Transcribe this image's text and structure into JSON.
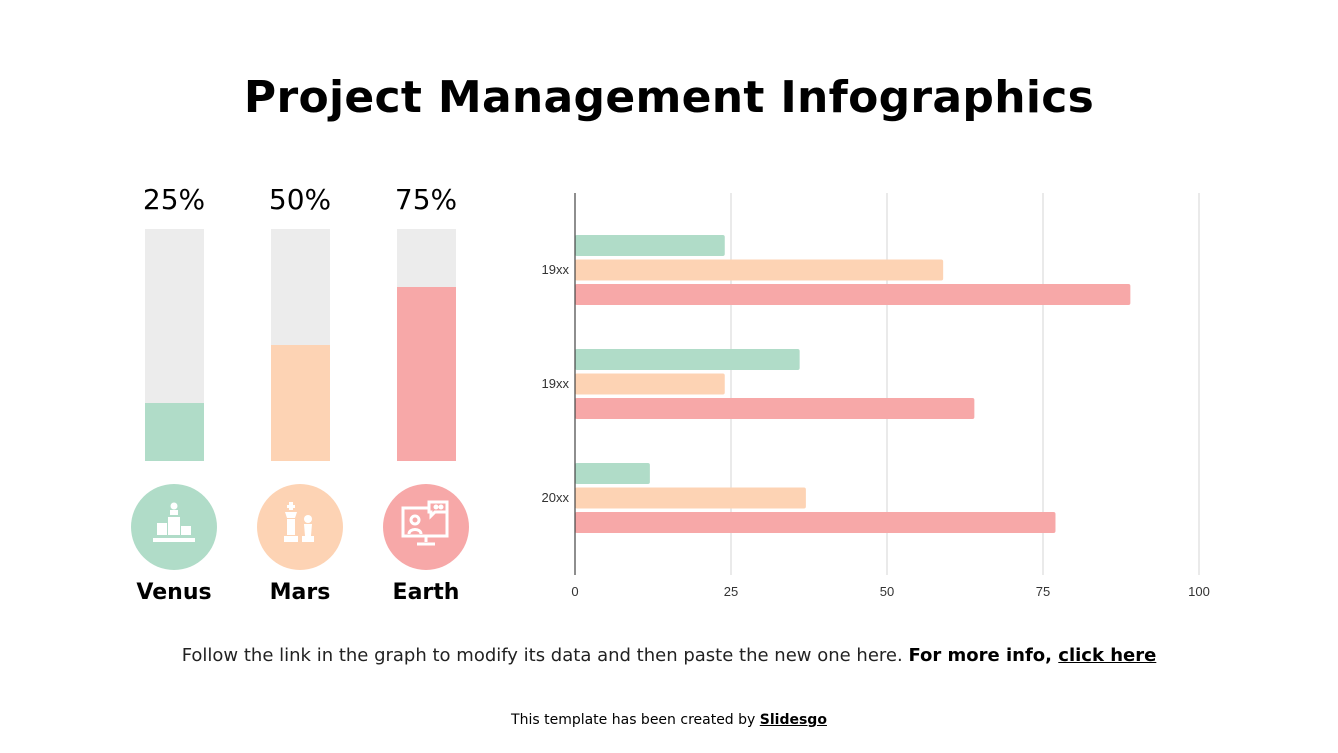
{
  "title": "Project Management Infographics",
  "colors": {
    "green": "#b0dcc8",
    "peach": "#fdd3b4",
    "red": "#f7a8a8",
    "track": "#ececec"
  },
  "progress_items": [
    {
      "name": "Venus",
      "percent_label": "25%",
      "percent": 25,
      "color": "#b0dcc8",
      "icon": "podium-icon"
    },
    {
      "name": "Mars",
      "percent_label": "50%",
      "percent": 50,
      "color": "#fdd3b4",
      "icon": "chess-pieces-icon"
    },
    {
      "name": "Earth",
      "percent_label": "75%",
      "percent": 75,
      "color": "#f7a8a8",
      "icon": "video-call-monitor-icon"
    }
  ],
  "chart_data": {
    "type": "bar",
    "orientation": "horizontal",
    "categories": [
      "19xx",
      "19xx",
      "20xx"
    ],
    "series": [
      {
        "values": [
          24,
          36,
          12
        ],
        "color": "#b0dcc8"
      },
      {
        "values": [
          59,
          24,
          37
        ],
        "color": "#fdd3b4"
      },
      {
        "values": [
          89,
          64,
          77
        ],
        "color": "#f7a8a8"
      }
    ],
    "xlim": [
      0,
      100
    ],
    "xticks": [
      "0",
      "25",
      "50",
      "75",
      "100"
    ],
    "grid": true
  },
  "footer": {
    "note_text": "Follow the link in the graph to modify its data and then paste the new one here. ",
    "note_bold": "For more info, ",
    "note_link": "click here",
    "credit_text": "This template has been created by ",
    "credit_link": "Slidesgo"
  }
}
